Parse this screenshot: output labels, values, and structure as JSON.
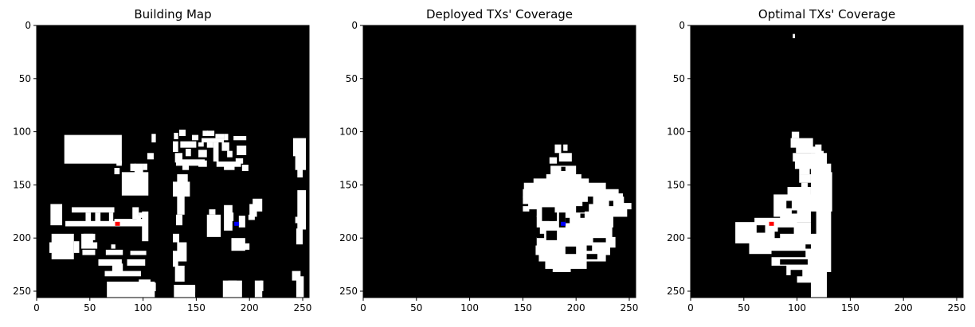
{
  "figure": {
    "background": "#ffffff",
    "map_color": "#000000",
    "fill_color": "#ffffff",
    "deployed_tx_color": "#0000ff",
    "optimal_tx_color": "#ff0000"
  },
  "chart_data": [
    {
      "type": "heatmap",
      "title": "Building Map",
      "xlabel": "",
      "ylabel": "",
      "xlim": [
        0,
        256
      ],
      "ylim": [
        256,
        0
      ],
      "xticks": [
        0,
        50,
        100,
        150,
        200,
        250
      ],
      "yticks": [
        0,
        50,
        100,
        150,
        200,
        250
      ],
      "grid": false,
      "image_size": [
        256,
        256
      ],
      "colors": {
        "background": "#000000",
        "foreground": "#ffffff"
      },
      "white_regions": [
        [
          26,
          103,
          80,
          130
        ],
        [
          36,
          111,
          65,
          124
        ],
        [
          54,
          111,
          60,
          124
        ],
        [
          43,
          111,
          52,
          126
        ],
        [
          104,
          120,
          110,
          126
        ],
        [
          108,
          102,
          112,
          110
        ],
        [
          73,
          134,
          78,
          140
        ],
        [
          88,
          130,
          93,
          137
        ],
        [
          100,
          130,
          104,
          136
        ],
        [
          75,
          127,
          80,
          132
        ],
        [
          80,
          138,
          105,
          160
        ],
        [
          92,
          130,
          100,
          140
        ],
        [
          13,
          168,
          24,
          188
        ],
        [
          33,
          171,
          73,
          176
        ],
        [
          55,
          176,
          60,
          188
        ],
        [
          68,
          176,
          72,
          188
        ],
        [
          46,
          176,
          51,
          186
        ],
        [
          27,
          184,
          73,
          189
        ],
        [
          73,
          182,
          100,
          189
        ],
        [
          90,
          171,
          96,
          182
        ],
        [
          94,
          179,
          98,
          186
        ],
        [
          96,
          176,
          101,
          181
        ],
        [
          99,
          175,
          105,
          203
        ],
        [
          14,
          196,
          35,
          220
        ],
        [
          12,
          204,
          25,
          214
        ],
        [
          35,
          203,
          40,
          214
        ],
        [
          42,
          196,
          53,
          210
        ],
        [
          43,
          211,
          55,
          216
        ],
        [
          44,
          196,
          55,
          202
        ],
        [
          52,
          204,
          57,
          210
        ],
        [
          65,
          211,
          81,
          216
        ],
        [
          70,
          206,
          74,
          210
        ],
        [
          58,
          220,
          80,
          226
        ],
        [
          71,
          224,
          81,
          232
        ],
        [
          64,
          231,
          98,
          236
        ],
        [
          85,
          220,
          102,
          226
        ],
        [
          88,
          212,
          103,
          216
        ],
        [
          66,
          241,
          111,
          256
        ],
        [
          88,
          242,
          102,
          253
        ],
        [
          96,
          239,
          107,
          244
        ],
        [
          107,
          242,
          112,
          250
        ],
        [
          129,
          101,
          133,
          107
        ],
        [
          134,
          98,
          140,
          104
        ],
        [
          146,
          103,
          152,
          108
        ],
        [
          156,
          99,
          161,
          104
        ],
        [
          160,
          99,
          167,
          104
        ],
        [
          155,
          106,
          176,
          110
        ],
        [
          168,
          102,
          176,
          106
        ],
        [
          176,
          102,
          180,
          108
        ],
        [
          128,
          109,
          133,
          119
        ],
        [
          135,
          109,
          150,
          115
        ],
        [
          140,
          116,
          145,
          123
        ],
        [
          130,
          120,
          137,
          129
        ],
        [
          152,
          110,
          157,
          114
        ],
        [
          160,
          110,
          166,
          115
        ],
        [
          166,
          110,
          171,
          128
        ],
        [
          152,
          117,
          160,
          124
        ],
        [
          174,
          110,
          181,
          118
        ],
        [
          179,
          118,
          184,
          124
        ],
        [
          185,
          104,
          197,
          108
        ],
        [
          188,
          113,
          197,
          122
        ],
        [
          131,
          126,
          158,
          132
        ],
        [
          137,
          130,
          143,
          136
        ],
        [
          152,
          127,
          160,
          133
        ],
        [
          169,
          128,
          192,
          133
        ],
        [
          176,
          131,
          186,
          136
        ],
        [
          193,
          131,
          199,
          137
        ],
        [
          187,
          125,
          194,
          130
        ],
        [
          241,
          106,
          253,
          123
        ],
        [
          243,
          122,
          253,
          136
        ],
        [
          245,
          135,
          250,
          143
        ],
        [
          132,
          140,
          142,
          148
        ],
        [
          128,
          147,
          144,
          161
        ],
        [
          132,
          160,
          139,
          178
        ],
        [
          131,
          178,
          137,
          188
        ],
        [
          160,
          178,
          173,
          199
        ],
        [
          162,
          173,
          168,
          178
        ],
        [
          176,
          169,
          184,
          193
        ],
        [
          180,
          176,
          185,
          184
        ],
        [
          190,
          179,
          196,
          190
        ],
        [
          200,
          168,
          207,
          180
        ],
        [
          203,
          163,
          212,
          175
        ],
        [
          199,
          178,
          205,
          183
        ],
        [
          245,
          155,
          253,
          192
        ],
        [
          243,
          180,
          249,
          186
        ],
        [
          244,
          191,
          250,
          206
        ],
        [
          128,
          196,
          134,
          204
        ],
        [
          132,
          204,
          141,
          222
        ],
        [
          128,
          212,
          133,
          227
        ],
        [
          130,
          226,
          139,
          241
        ],
        [
          129,
          244,
          149,
          256
        ],
        [
          141,
          245,
          149,
          251
        ],
        [
          175,
          240,
          193,
          256
        ],
        [
          180,
          240,
          188,
          249
        ],
        [
          183,
          200,
          196,
          212
        ],
        [
          193,
          205,
          200,
          211
        ],
        [
          205,
          240,
          212,
          256
        ],
        [
          210,
          240,
          213,
          250
        ],
        [
          244,
          236,
          251,
          256
        ],
        [
          240,
          231,
          248,
          240
        ]
      ],
      "markers": [
        {
          "label": "optimal",
          "x": 76,
          "y": 187,
          "color": "#ff0000"
        },
        {
          "label": "deployed",
          "x": 188,
          "y": 187,
          "color": "#0000ff"
        }
      ]
    },
    {
      "type": "heatmap",
      "title": "Deployed TXs' Coverage",
      "xlabel": "",
      "ylabel": "",
      "xlim": [
        0,
        256
      ],
      "ylim": [
        256,
        0
      ],
      "xticks": [
        0,
        50,
        100,
        150,
        200,
        250
      ],
      "yticks": [
        0,
        50,
        100,
        150,
        200,
        250
      ],
      "grid": false,
      "image_size": [
        256,
        256
      ],
      "colors": {
        "background": "#000000",
        "foreground": "#ffffff"
      },
      "white_regions": [
        [
          176,
          132,
          200,
          142
        ],
        [
          172,
          140,
          205,
          145
        ],
        [
          160,
          144,
          212,
          150
        ],
        [
          151,
          148,
          228,
          155
        ],
        [
          150,
          154,
          240,
          162
        ],
        [
          150,
          161,
          245,
          168
        ],
        [
          155,
          167,
          252,
          173
        ],
        [
          163,
          172,
          248,
          180
        ],
        [
          163,
          179,
          235,
          190
        ],
        [
          166,
          187,
          234,
          200
        ],
        [
          163,
          199,
          237,
          209
        ],
        [
          162,
          207,
          232,
          216
        ],
        [
          165,
          214,
          228,
          222
        ],
        [
          171,
          220,
          210,
          229
        ],
        [
          178,
          227,
          195,
          232
        ],
        [
          180,
          112,
          186,
          120
        ],
        [
          188,
          112,
          192,
          118
        ],
        [
          175,
          124,
          182,
          130
        ],
        [
          184,
          120,
          196,
          128
        ],
        [
          150,
          170,
          156,
          175
        ],
        [
          238,
          158,
          244,
          163
        ]
      ],
      "black_regions": [
        [
          186,
          133,
          190,
          137
        ],
        [
          168,
          171,
          180,
          184
        ],
        [
          175,
          176,
          182,
          184
        ],
        [
          184,
          176,
          190,
          190
        ],
        [
          190,
          181,
          194,
          186
        ],
        [
          204,
          177,
          208,
          181
        ],
        [
          206,
          166,
          212,
          175
        ],
        [
          200,
          170,
          208,
          176
        ],
        [
          211,
          161,
          216,
          168
        ],
        [
          172,
          193,
          182,
          202
        ],
        [
          163,
          196,
          170,
          200
        ],
        [
          190,
          208,
          200,
          215
        ],
        [
          210,
          207,
          215,
          212
        ],
        [
          210,
          215,
          220,
          220
        ],
        [
          231,
          165,
          235,
          170
        ],
        [
          216,
          200,
          228,
          204
        ]
      ],
      "markers": [
        {
          "label": "deployed",
          "x": 188,
          "y": 187,
          "color": "#0000ff"
        }
      ]
    },
    {
      "type": "heatmap",
      "title": "Optimal TXs' Coverage",
      "xlabel": "",
      "ylabel": "",
      "xlim": [
        0,
        256
      ],
      "ylim": [
        256,
        0
      ],
      "xticks": [
        0,
        50,
        100,
        150,
        200,
        250
      ],
      "yticks": [
        0,
        50,
        100,
        150,
        200,
        250
      ],
      "grid": false,
      "image_size": [
        256,
        256
      ],
      "colors": {
        "background": "#000000",
        "foreground": "#ffffff"
      },
      "white_regions": [
        [
          96,
          8,
          98,
          12
        ],
        [
          95,
          100,
          102,
          106
        ],
        [
          94,
          106,
          115,
          115
        ],
        [
          99,
          114,
          121,
          120
        ],
        [
          96,
          120,
          117,
          128
        ],
        [
          98,
          127,
          115,
          135
        ],
        [
          102,
          134,
          112,
          140
        ],
        [
          102,
          140,
          113,
          148
        ],
        [
          104,
          148,
          110,
          153
        ],
        [
          117,
          112,
          123,
          122
        ],
        [
          122,
          118,
          125,
          124
        ],
        [
          113,
          120,
          128,
          256
        ],
        [
          120,
          130,
          132,
          232
        ],
        [
          128,
          138,
          133,
          175
        ],
        [
          91,
          152,
          113,
          172
        ],
        [
          78,
          159,
          115,
          180
        ],
        [
          84,
          178,
          115,
          185
        ],
        [
          60,
          181,
          100,
          190
        ],
        [
          42,
          185,
          130,
          205
        ],
        [
          55,
          200,
          130,
          215
        ],
        [
          76,
          214,
          128,
          226
        ],
        [
          90,
          224,
          126,
          235
        ],
        [
          100,
          232,
          125,
          242
        ]
      ],
      "black_regions": [
        [
          90,
          165,
          95,
          172
        ],
        [
          95,
          174,
          100,
          177
        ],
        [
          113,
          175,
          118,
          196
        ],
        [
          82,
          190,
          97,
          196
        ],
        [
          79,
          194,
          84,
          200
        ],
        [
          62,
          188,
          70,
          195
        ],
        [
          76,
          212,
          108,
          218
        ],
        [
          84,
          220,
          110,
          225
        ],
        [
          94,
          230,
          105,
          236
        ],
        [
          108,
          206,
          113,
          210
        ]
      ],
      "markers": [
        {
          "label": "optimal",
          "x": 76,
          "y": 187,
          "color": "#ff0000"
        }
      ]
    }
  ]
}
